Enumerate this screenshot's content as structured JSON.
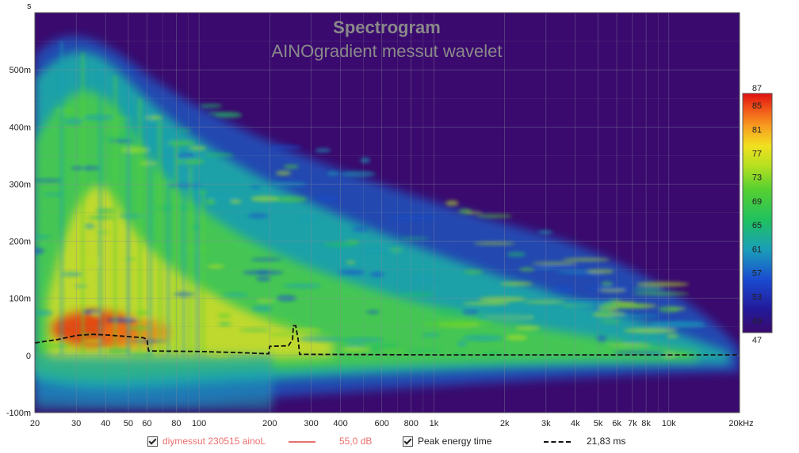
{
  "chart_data": {
    "type": "heatmap",
    "title": "Spectrogram",
    "subtitle": "AINOgradient messut wavelet",
    "xlabel": "",
    "ylabel": "s",
    "x_scale": "log",
    "xlim": [
      20,
      20000
    ],
    "ylim": [
      -0.1,
      0.6
    ],
    "x_ticks": [
      {
        "value": 20,
        "label": "20"
      },
      {
        "value": 30,
        "label": "30"
      },
      {
        "value": 40,
        "label": "40"
      },
      {
        "value": 50,
        "label": "50"
      },
      {
        "value": 60,
        "label": "60"
      },
      {
        "value": 80,
        "label": "80"
      },
      {
        "value": 100,
        "label": "100"
      },
      {
        "value": 200,
        "label": "200"
      },
      {
        "value": 300,
        "label": "300"
      },
      {
        "value": 400,
        "label": "400"
      },
      {
        "value": 600,
        "label": "600"
      },
      {
        "value": 800,
        "label": "800"
      },
      {
        "value": 1000,
        "label": "1k"
      },
      {
        "value": 2000,
        "label": "2k"
      },
      {
        "value": 3000,
        "label": "3k"
      },
      {
        "value": 4000,
        "label": "4k"
      },
      {
        "value": 5000,
        "label": "5k"
      },
      {
        "value": 6000,
        "label": "6k"
      },
      {
        "value": 7000,
        "label": "7k"
      },
      {
        "value": 8000,
        "label": "8k"
      },
      {
        "value": 10000,
        "label": "10k"
      },
      {
        "value": 20000,
        "label": "20kHz"
      }
    ],
    "x_minor": [
      70,
      90,
      500,
      700,
      900,
      9000
    ],
    "y_ticks": [
      {
        "value": -0.1,
        "label": "-100m"
      },
      {
        "value": 0,
        "label": "0"
      },
      {
        "value": 0.1,
        "label": "100m"
      },
      {
        "value": 0.2,
        "label": "200m"
      },
      {
        "value": 0.3,
        "label": "300m"
      },
      {
        "value": 0.4,
        "label": "400m"
      },
      {
        "value": 0.5,
        "label": "500m"
      }
    ],
    "colorbar": {
      "min": 47,
      "max": 87,
      "ticks": [
        {
          "value": 87,
          "label": "87"
        },
        {
          "value": 85,
          "label": "85"
        },
        {
          "value": 81,
          "label": "81"
        },
        {
          "value": 77,
          "label": "77"
        },
        {
          "value": 73,
          "label": "73"
        },
        {
          "value": 69,
          "label": "69"
        },
        {
          "value": 65,
          "label": "65"
        },
        {
          "value": 61,
          "label": "61"
        },
        {
          "value": 57,
          "label": "57"
        },
        {
          "value": 53,
          "label": "53"
        },
        {
          "value": 49,
          "label": "49"
        },
        {
          "value": 47,
          "label": "47"
        }
      ]
    },
    "series": [
      {
        "name": "Peak energy time",
        "style": "dashed",
        "color": "#111111",
        "x": [
          20,
          25,
          30,
          35,
          40,
          50,
          58,
          60,
          61,
          100,
          150,
          198,
          200,
          240,
          250,
          252,
          258,
          264,
          268,
          300,
          1000,
          5000,
          20000
        ],
        "y": [
          0.022,
          0.028,
          0.035,
          0.037,
          0.036,
          0.033,
          0.031,
          0.028,
          0.008,
          0.007,
          0.005,
          0.003,
          0.016,
          0.017,
          0.028,
          0.052,
          0.052,
          0.028,
          0.002,
          0.002,
          0.001,
          0.001,
          0.001
        ]
      }
    ],
    "legend": {
      "placement": "bottom",
      "items": [
        {
          "name": "diymessut 230515 ainoL",
          "value": "55,0 dB",
          "color": "#e8706e",
          "checked": true
        },
        {
          "name": "Peak energy time",
          "value": "21,83 ms",
          "color": "#111111",
          "checked": true
        }
      ]
    },
    "grid": true,
    "background_color": "#3a0a6e"
  }
}
